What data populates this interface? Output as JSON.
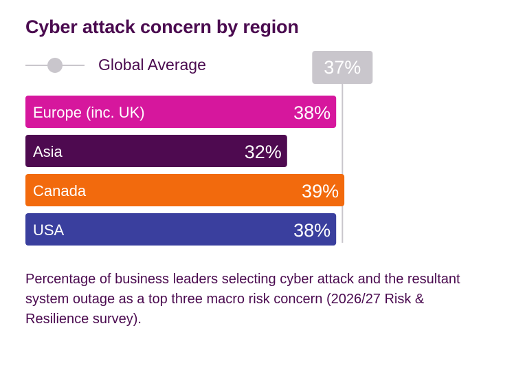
{
  "title": "Cyber attack concern by region",
  "legend": {
    "label": "Global Average"
  },
  "caption": "Percentage of business leaders selecting cyber attack and the resultant system outage as a top three macro risk concern (2026/27 Risk & Resilience survey).",
  "chart_data": {
    "type": "bar",
    "orientation": "horizontal",
    "title": "Cyber attack concern by region",
    "categories": [
      "Europe (inc. UK)",
      "Asia",
      "Canada",
      "USA"
    ],
    "values": [
      38,
      32,
      39,
      38
    ],
    "value_labels": [
      "38%",
      "32%",
      "39%",
      "38%"
    ],
    "colors": [
      "#d6179d",
      "#4e0a50",
      "#f26a0d",
      "#3a3f9e"
    ],
    "reference_line": {
      "name": "Global Average",
      "value": 37,
      "label": "37%",
      "color": "#c9c6cc"
    },
    "xlim": [
      0,
      100
    ],
    "grid": false
  }
}
